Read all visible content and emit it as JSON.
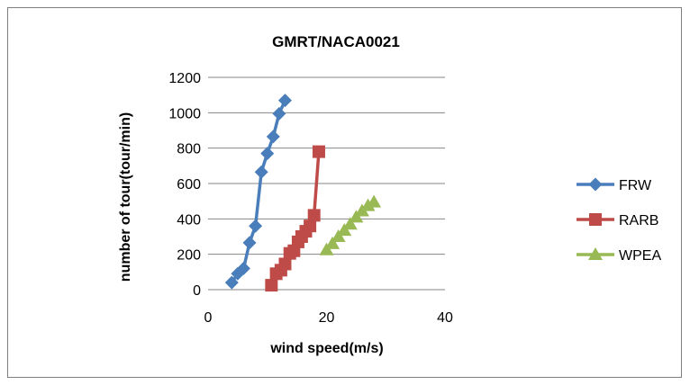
{
  "chart_data": {
    "type": "line",
    "title": "GMRT/NACA0021",
    "xlabel": "wind speed(m/s)",
    "ylabel": "number of tour(tour/min)",
    "xlim": [
      0,
      40
    ],
    "ylim": [
      0,
      1200
    ],
    "x_ticks": [
      "0",
      "20",
      "40"
    ],
    "y_ticks": [
      "0",
      "200",
      "400",
      "600",
      "800",
      "1000",
      "1200"
    ],
    "grid": "horizontal",
    "legend_position": "right",
    "series": [
      {
        "name": "FRW",
        "color": "#4a7ebb",
        "marker": "diamond",
        "x": [
          4,
          5,
          6,
          7,
          8,
          9,
          10,
          11,
          12,
          13
        ],
        "y": [
          40,
          90,
          120,
          265,
          360,
          665,
          770,
          865,
          995,
          1070
        ]
      },
      {
        "name": "RARB",
        "color": "#be4b48",
        "marker": "square",
        "x": [
          10.7,
          11.5,
          12.3,
          13,
          13.8,
          14.5,
          15.2,
          15.8,
          16.5,
          17.2,
          17.9,
          18.7
        ],
        "y": [
          25,
          90,
          110,
          145,
          205,
          220,
          270,
          300,
          330,
          360,
          420,
          780
        ]
      },
      {
        "name": "WPEA",
        "color": "#98b954",
        "marker": "triangle",
        "x": [
          20,
          21,
          22,
          23,
          24,
          25,
          26,
          27,
          28
        ],
        "y": [
          225,
          260,
          300,
          335,
          370,
          410,
          445,
          475,
          495
        ]
      }
    ]
  }
}
